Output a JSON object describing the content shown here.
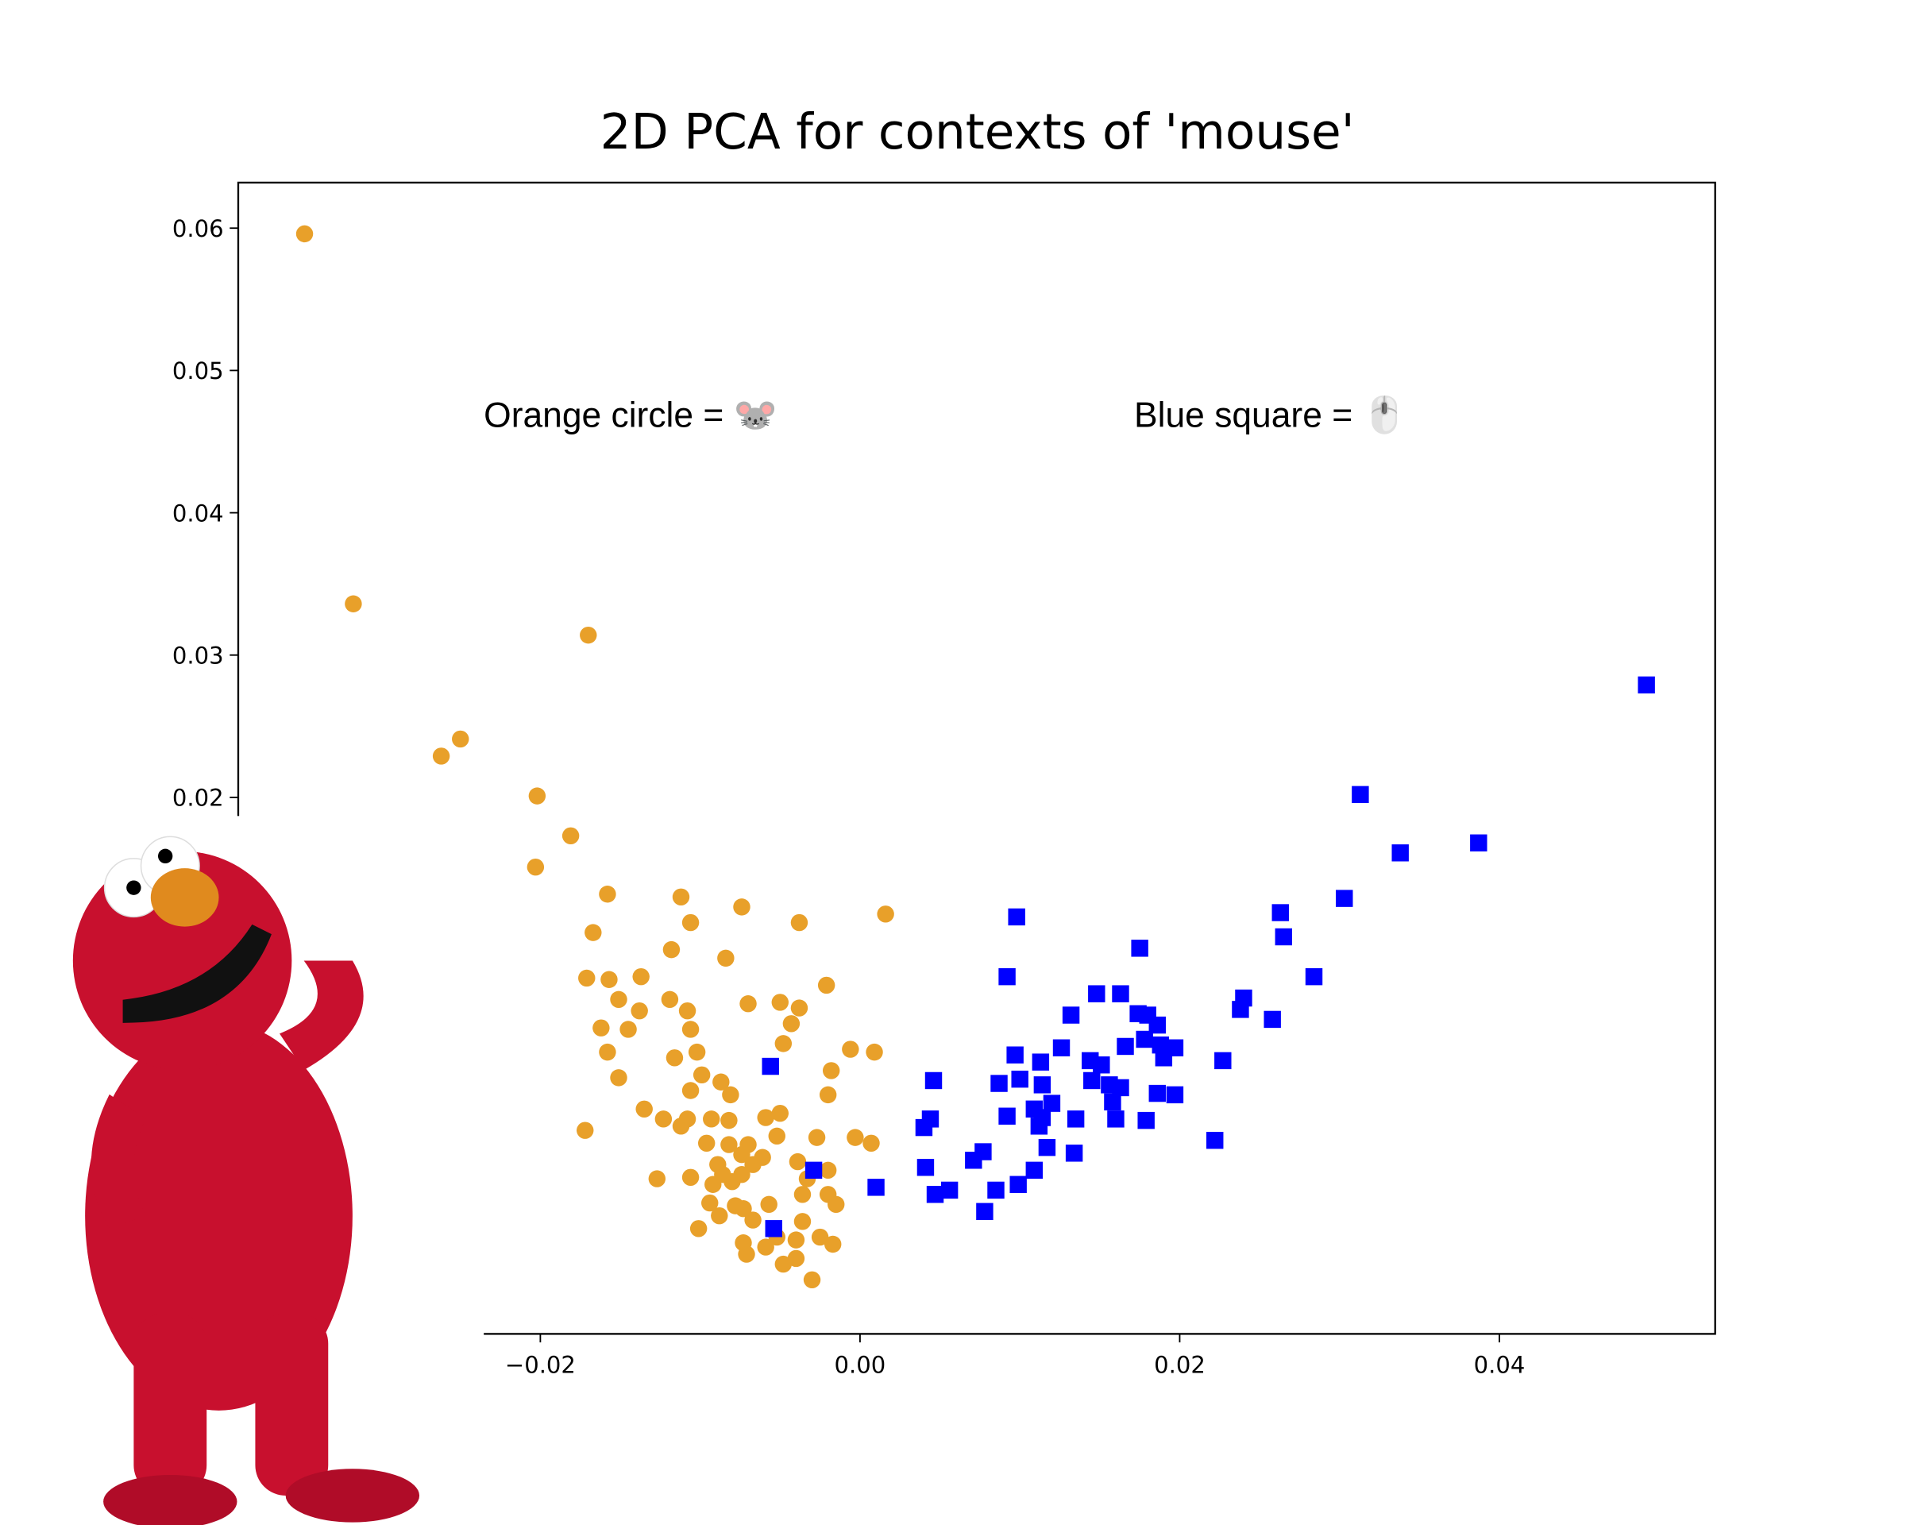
{
  "chart_data": {
    "type": "scatter",
    "title": "2D PCA for contexts of 'mouse'",
    "annotations": [
      {
        "text": "Orange circle = 🐭",
        "color": "#e8a02a"
      },
      {
        "text": "Blue square = 🖱️",
        "color": "#2a3ae8"
      }
    ],
    "xlim": [
      -0.0389,
      0.0535
    ],
    "ylim": [
      -0.0177,
      0.0632
    ],
    "xticks": [
      {
        "value": -0.02,
        "label": "−0.02"
      },
      {
        "value": 0,
        "label": "0.00"
      },
      0.02,
      0.04
    ],
    "yticks": [
      0.02,
      0.03,
      0.04,
      0.05,
      0.06
    ],
    "series": [
      {
        "name": "Orange circle",
        "color": "#e8a02a",
        "marker": "circle",
        "x": [
          -0.03475,
          -0.0317,
          -0.017,
          -0.025,
          -0.0262,
          -0.0202,
          -0.0181,
          -0.0203,
          -0.0158,
          -0.0112,
          -0.0074,
          0.0016,
          -0.0038,
          -0.0106,
          -0.0167,
          -0.0118,
          -0.0084,
          -0.0137,
          -0.0171,
          -0.0157,
          -0.0021,
          -0.0151,
          -0.0119,
          -0.007,
          -0.005,
          -0.0038,
          -0.0108,
          -0.0138,
          -0.0162,
          -0.0145,
          -0.0106,
          -0.0043,
          -0.0048,
          -0.0158,
          -0.0116,
          -0.0102,
          -0.0006,
          0.0009,
          -0.0018,
          -0.0151,
          -0.0099,
          -0.0087,
          -0.0106,
          -0.0081,
          -0.002,
          -0.0135,
          -0.0123,
          -0.0108,
          -0.0093,
          -0.0082,
          -0.0059,
          -0.005,
          -0.0112,
          -0.0172,
          -0.0096,
          -0.0082,
          -0.007,
          -0.0052,
          -0.0027,
          -0.0003,
          0.0007,
          -0.0074,
          -0.0061,
          -0.0039,
          -0.0089,
          -0.0067,
          -0.0086,
          -0.0074,
          -0.002,
          -0.0106,
          -0.0127,
          -0.0033,
          -0.0092,
          -0.008,
          -0.002,
          -0.0036,
          -0.0015,
          -0.0094,
          -0.0078,
          -0.0073,
          -0.0057,
          -0.0088,
          -0.0067,
          -0.0101,
          -0.0036,
          -0.0052,
          -0.004,
          -0.0025,
          -0.0017,
          -0.0073,
          -0.0059,
          -0.0071,
          -0.0048,
          -0.004,
          -0.003
        ],
        "values": [
          0.0596,
          0.0336,
          0.0314,
          0.0241,
          0.0229,
          0.0201,
          0.0173,
          0.0151,
          0.0132,
          0.013,
          0.0123,
          0.0118,
          0.0112,
          0.0112,
          0.0105,
          0.0093,
          0.0087,
          0.0074,
          0.0073,
          0.0072,
          0.0068,
          0.0058,
          0.0058,
          0.0055,
          0.0056,
          0.0052,
          0.005,
          0.005,
          0.0038,
          0.0037,
          0.0037,
          0.0041,
          0.0027,
          0.0021,
          0.0017,
          0.0021,
          0.0023,
          0.0021,
          0.0008,
          0.0003,
          0.0005,
          0.0,
          -0.0006,
          -0.0009,
          -0.0009,
          -0.0019,
          -0.0026,
          -0.0026,
          -0.0026,
          -0.0027,
          -0.0025,
          -0.0022,
          -0.0031,
          -0.0034,
          -0.0043,
          -0.0044,
          -0.0044,
          -0.0038,
          -0.0039,
          -0.0039,
          -0.0043,
          -0.0051,
          -0.0053,
          -0.0056,
          -0.0058,
          -0.0058,
          -0.0065,
          -0.0065,
          -0.0062,
          -0.0067,
          -0.0068,
          -0.0068,
          -0.0072,
          -0.007,
          -0.0079,
          -0.0079,
          -0.0086,
          -0.0085,
          -0.0087,
          -0.0089,
          -0.0086,
          -0.0094,
          -0.0097,
          -0.0103,
          -0.0098,
          -0.0109,
          -0.0111,
          -0.0109,
          -0.0114,
          -0.0113,
          -0.0116,
          -0.0121,
          -0.0128,
          -0.0124,
          -0.0139
        ]
      },
      {
        "name": "Blue square",
        "color": "#0000ff",
        "marker": "square",
        "x": [
          0.0492,
          0.0313,
          0.0387,
          0.0338,
          0.0303,
          0.0098,
          0.0263,
          0.0265,
          0.0175,
          0.0284,
          0.0092,
          0.0148,
          0.0163,
          0.024,
          0.0238,
          0.0132,
          0.0174,
          0.018,
          0.0186,
          0.0258,
          0.0178,
          0.0188,
          0.0197,
          0.0166,
          0.0126,
          0.0097,
          0.0144,
          0.0151,
          0.019,
          0.0227,
          -0.0056,
          0.0113,
          0.0046,
          0.0087,
          0.01,
          0.0114,
          0.0145,
          0.0156,
          0.0163,
          0.0186,
          0.0197,
          0.0158,
          0.012,
          0.0109,
          0.0092,
          0.0114,
          0.0135,
          0.016,
          0.0179,
          0.0112,
          0.0044,
          0.004,
          0.0222,
          0.0117,
          0.0134,
          0.0077,
          0.0071,
          0.0041,
          -0.0029,
          0.0109,
          0.001,
          0.0099,
          0.0056,
          0.0047,
          0.0085,
          -0.0054,
          0.0078
        ],
        "values": [
          0.0279,
          0.0202,
          0.0168,
          0.0161,
          0.0129,
          0.0116,
          0.0119,
          0.0102,
          0.0094,
          0.0074,
          0.0074,
          0.0062,
          0.0062,
          0.0059,
          0.0051,
          0.0047,
          0.0048,
          0.0047,
          0.004,
          0.0044,
          0.003,
          0.0026,
          0.0024,
          0.0025,
          0.0024,
          0.0019,
          0.0015,
          0.0012,
          0.0017,
          0.0015,
          0.0011,
          0.0014,
          0.0001,
          -0.0001,
          0.0002,
          -0.0002,
          0.0001,
          -0.0002,
          -0.0004,
          -0.0008,
          -0.0009,
          -0.0014,
          -0.0015,
          -0.0019,
          -0.0024,
          -0.0025,
          -0.0026,
          -0.0026,
          -0.0027,
          -0.0031,
          -0.0026,
          -0.0032,
          -0.0041,
          -0.0046,
          -0.005,
          -0.0049,
          -0.0055,
          -0.006,
          -0.0062,
          -0.0062,
          -0.0074,
          -0.0072,
          -0.0076,
          -0.0079,
          -0.0076,
          -0.0103,
          -0.0091
        ]
      }
    ]
  }
}
